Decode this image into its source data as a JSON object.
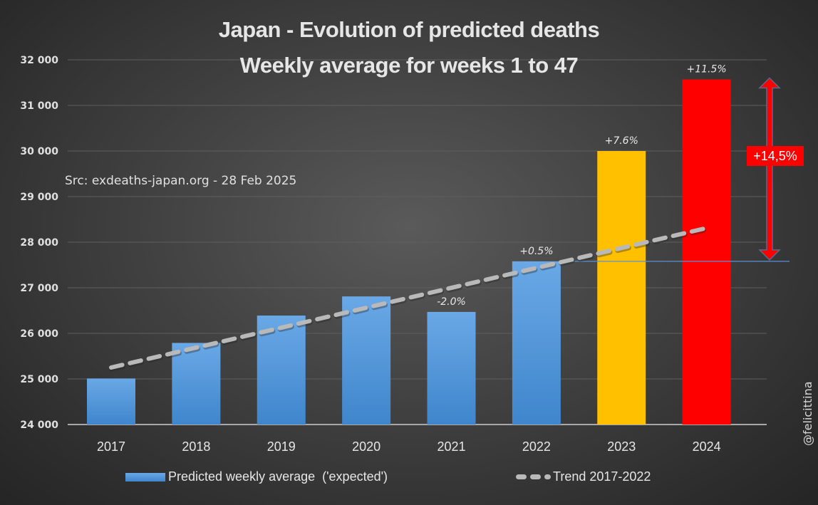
{
  "chart_data": {
    "type": "bar",
    "title": "Japan - Evolution of predicted deaths",
    "subtitle": "Weekly average for weeks 1 to 47",
    "xlabel": "",
    "ylabel": "",
    "ylim": [
      24000,
      32000
    ],
    "yticks": [
      24000,
      25000,
      26000,
      27000,
      28000,
      29000,
      30000,
      31000,
      32000
    ],
    "ytick_labels": [
      "24 000",
      "25 000",
      "26 000",
      "27 000",
      "28 000",
      "29 000",
      "30 000",
      "31 000",
      "32 000"
    ],
    "grid": true,
    "categories": [
      "2017",
      "2018",
      "2019",
      "2020",
      "2021",
      "2022",
      "2023",
      "2024"
    ],
    "series": [
      {
        "name": "Predicted weekly average  ('expected')",
        "values": [
          25010,
          25790,
          26390,
          26810,
          26470,
          27580,
          30000,
          31570
        ],
        "colors": [
          "#5b9bd5",
          "#5b9bd5",
          "#5b9bd5",
          "#5b9bd5",
          "#5b9bd5",
          "#5b9bd5",
          "#ffc000",
          "#ff0000"
        ],
        "data_labels": [
          "",
          "",
          "",
          "",
          "-2.0%",
          "+0.5%",
          "+7.6%",
          "+11.5%"
        ]
      },
      {
        "name": "Trend 2017-2022",
        "type": "line",
        "style": "dashed",
        "color": "#b9b9b9",
        "start": {
          "category": "2017",
          "value": 25250
        },
        "end": {
          "category": "2024",
          "value": 28310
        }
      }
    ],
    "reference_line": {
      "value": 27580,
      "from_category": "2022",
      "color": "#5b8fd0"
    },
    "annotation": {
      "text": "+14,5%",
      "type": "double-arrow",
      "from_value": 27580,
      "to_value": 31570,
      "color": "#ff0000"
    },
    "legend_position": "bottom"
  },
  "labels": {
    "source": "Src: exdeaths-japan.org - 28 Feb 2025",
    "watermark": "@felicittina",
    "legend_bar": "Predicted weekly average  ('expected')",
    "legend_trend": "Trend 2017-2022"
  }
}
